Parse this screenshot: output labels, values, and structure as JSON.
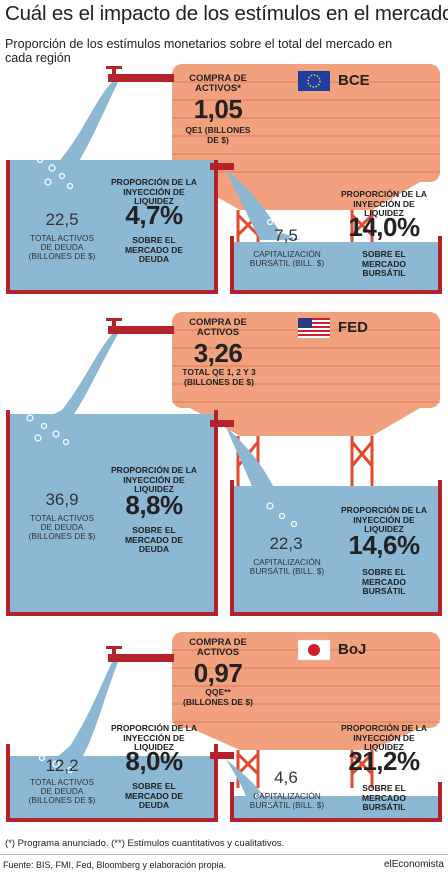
{
  "title": "Cuál es el impacto de los estímulos en el mercado",
  "subtitle": "Proporción de los estímulos monetarios sobre el total del mercado en cada región",
  "colors": {
    "water": "#8cb8d4",
    "tank_outline": "#b4232a",
    "brick": "#f1a17d",
    "scaffold": "#e04a2e"
  },
  "panels": [
    {
      "bank": "BCE",
      "flag": "eu-flag-icon",
      "purchase_header": "COMPRA DE ACTIVOS*",
      "purchase_value": "1,05",
      "purchase_note": "QE1 (BILLONES DE $)",
      "debt_total": "22,5",
      "debt_label": "TOTAL ACTIVOS DE DEUDA (BILLONES DE $)",
      "debt_share_header": "PROPORCIÓN DE LA INYECCIÓN DE LIQUIDEZ",
      "debt_share": "4,7%",
      "debt_share_footer": "SOBRE EL MERCADO DE DEUDA",
      "equity_total": "7,5",
      "equity_label": "CAPITALIZACIÓN BURSÁTIL (BILL. $)",
      "equity_share_header": "PROPORCIÓN DE LA INYECCIÓN DE LIQUIDEZ",
      "equity_share": "14,0%",
      "equity_share_footer": "SOBRE EL MERCADO BURSÁTIL"
    },
    {
      "bank": "FED",
      "flag": "us-flag-icon",
      "purchase_header": "COMPRA DE ACTIVOS",
      "purchase_value": "3,26",
      "purchase_note": "TOTAL QE 1, 2 Y 3 (BILLONES DE $)",
      "debt_total": "36,9",
      "debt_label": "TOTAL ACTIVOS DE DEUDA (BILLONES DE $)",
      "debt_share_header": "PROPORCIÓN DE LA INYECCIÓN DE LIQUIDEZ",
      "debt_share": "8,8%",
      "debt_share_footer": "SOBRE EL MERCADO DE DEUDA",
      "equity_total": "22,3",
      "equity_label": "CAPITALIZACIÓN BURSÁTIL (BILL. $)",
      "equity_share_header": "PROPORCIÓN DE LA INYECCIÓN DE LIQUIDEZ",
      "equity_share": "14,6%",
      "equity_share_footer": "SOBRE EL MERCADO BURSÁTIL"
    },
    {
      "bank": "BoJ",
      "flag": "japan-flag-icon",
      "purchase_header": "COMPRA DE ACTIVOS",
      "purchase_value": "0,97",
      "purchase_note": "QQE** (BILLONES DE $)",
      "debt_total": "12,2",
      "debt_label": "TOTAL ACTIVOS DE DEUDA (BILLONES DE $)",
      "debt_share_header": "PROPORCIÓN DE LA INYECCIÓN DE LIQUIDEZ",
      "debt_share": "8,0%",
      "debt_share_footer": "SOBRE EL MERCADO DE DEUDA",
      "equity_total": "4,6",
      "equity_label": "CAPITALIZACIÓN BURSÁTIL (BILL. $)",
      "equity_share_header": "PROPORCIÓN DE LA INYECCIÓN DE LIQUIDEZ",
      "equity_share": "21,2%",
      "equity_share_footer": "SOBRE EL MERCADO BURSÁTIL"
    }
  ],
  "footnote": "(*) Programa anunciado. (**) Estímulos cuantitativos y cualitativos.",
  "source": "Fuente: BIS, FMI, Fed, Bloomberg y elaboración propia.",
  "brand": "elEconomista"
}
